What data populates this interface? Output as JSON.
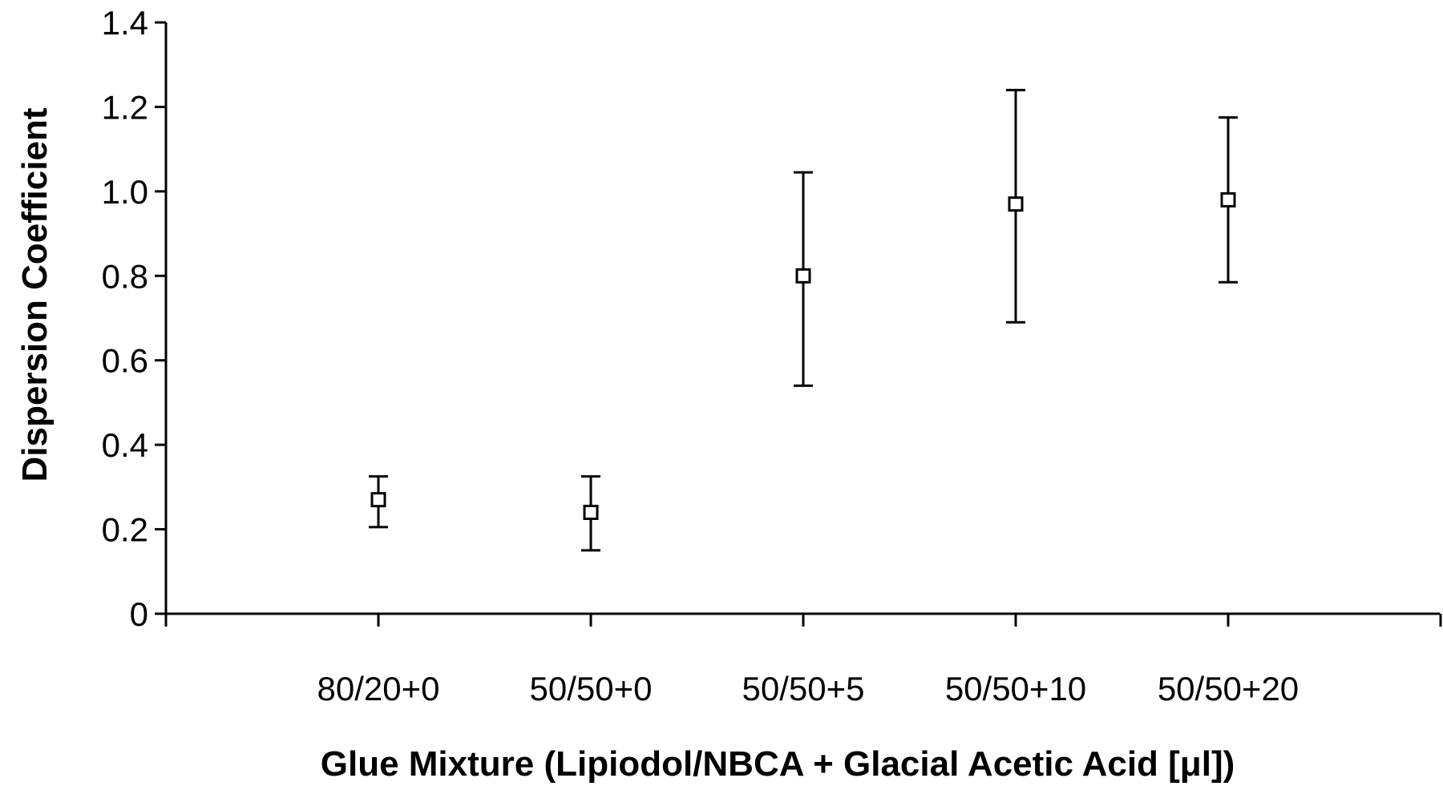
{
  "chart_data": {
    "type": "scatter",
    "title": "",
    "xlabel": "Glue Mixture (Lipiodol/NBCA + Glacial Acetic Acid [μl])",
    "ylabel": "Dispersion Coefficient",
    "categories": [
      "80/20+0",
      "50/50+0",
      "50/50+5",
      "50/50+10",
      "50/50+20"
    ],
    "values": [
      0.27,
      0.24,
      0.8,
      0.97,
      0.98
    ],
    "error_low": [
      0.205,
      0.15,
      0.54,
      0.69,
      0.785
    ],
    "error_high": [
      0.325,
      0.325,
      1.045,
      1.24,
      1.175
    ],
    "ylim": [
      0,
      1.4
    ],
    "y_ticks": [
      "0",
      "0.2",
      "0.4",
      "0.6",
      "0.8",
      "1.0",
      "1.2",
      "1.4"
    ],
    "y_tick_values": [
      0,
      0.2,
      0.4,
      0.6,
      0.8,
      1.0,
      1.2,
      1.4
    ],
    "marker": "open-square",
    "grid": false,
    "legend": "none"
  }
}
